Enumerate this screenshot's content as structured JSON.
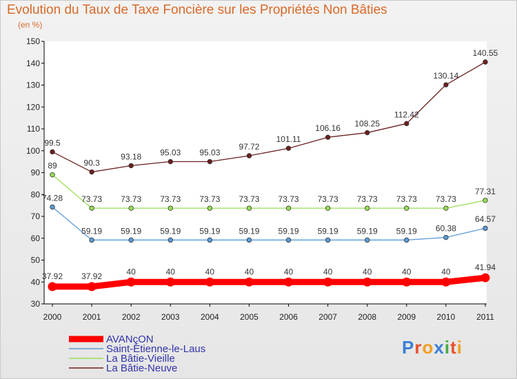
{
  "title": "Evolution du Taux de Taxe Foncière sur les Propriétés Non Bâties",
  "unit": "(en %)",
  "logo": "Proxiti",
  "chart_data": {
    "type": "line",
    "x": [
      "2000",
      "2001",
      "2002",
      "2003",
      "2004",
      "2005",
      "2006",
      "2007",
      "2008",
      "2009",
      "2010",
      "2011"
    ],
    "ylim": [
      30,
      150
    ],
    "yticks": [
      30,
      40,
      50,
      60,
      70,
      80,
      90,
      100,
      110,
      120,
      130,
      140,
      150
    ],
    "grid": false,
    "legend": "bottom-left",
    "series": [
      {
        "name": "AVANçON",
        "color": "#ff0000",
        "values": [
          37.92,
          37.92,
          40,
          40,
          40,
          40,
          40,
          40,
          40,
          40,
          40,
          41.94
        ],
        "labels": [
          "37.92",
          "37.92",
          "40",
          "40",
          "40",
          "40",
          "40",
          "40",
          "40",
          "40",
          "40",
          "41.94"
        ]
      },
      {
        "name": "Saint-Étienne-le-Laus",
        "color": "#5b9bd5",
        "values": [
          74.28,
          59.19,
          59.19,
          59.19,
          59.19,
          59.19,
          59.19,
          59.19,
          59.19,
          59.19,
          60.38,
          64.57
        ],
        "labels": [
          "74.28",
          "59.19",
          "59.19",
          "59.19",
          "59.19",
          "59.19",
          "59.19",
          "59.19",
          "59.19",
          "59.19",
          "60.38",
          "64.57"
        ]
      },
      {
        "name": "La Bâtie-Vieille",
        "color": "#99dd55",
        "values": [
          89,
          73.73,
          73.73,
          73.73,
          73.73,
          73.73,
          73.73,
          73.73,
          73.73,
          73.73,
          73.73,
          77.31
        ],
        "labels": [
          "89",
          "73.73",
          "73.73",
          "73.73",
          "73.73",
          "73.73",
          "73.73",
          "73.73",
          "73.73",
          "73.73",
          "73.73",
          "77.31"
        ]
      },
      {
        "name": "La Bâtie-Neuve",
        "color": "#6b1f1f",
        "values": [
          99.5,
          90.3,
          93.18,
          95.03,
          95.03,
          97.72,
          101.11,
          106.16,
          108.25,
          112.42,
          130.14,
          140.55
        ],
        "labels": [
          "99.5",
          "90.3",
          "93.18",
          "95.03",
          "95.03",
          "97.72",
          "101.11",
          "106.16",
          "108.25",
          "112.42",
          "130.14",
          "140.55"
        ]
      }
    ]
  }
}
